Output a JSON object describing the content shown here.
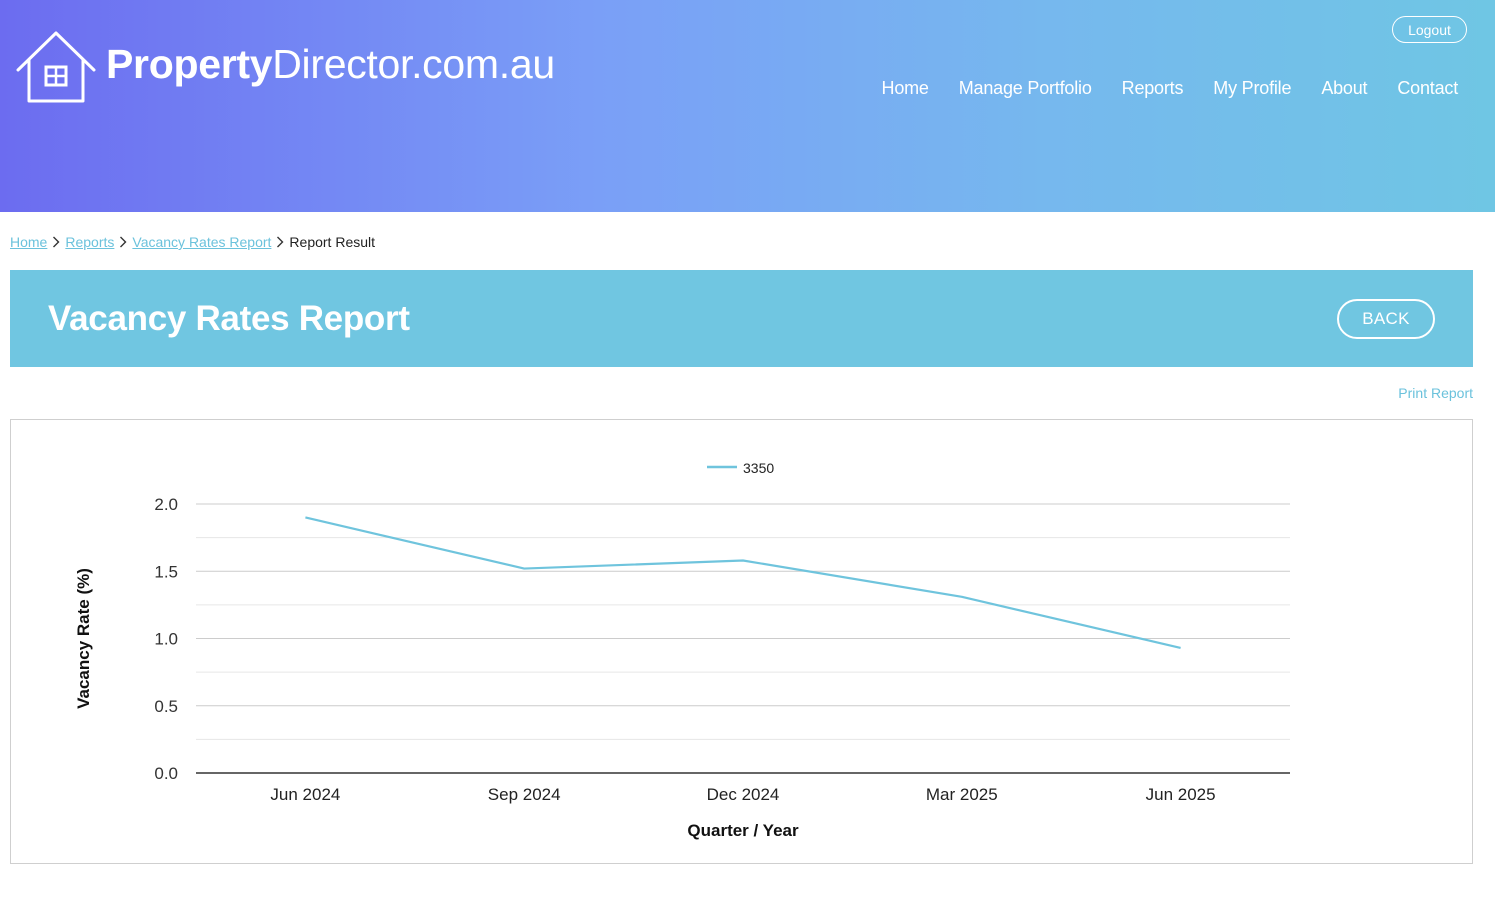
{
  "header": {
    "logo": {
      "bold": "Property",
      "light": "Director.com.au"
    },
    "logout_label": "Logout",
    "nav": [
      "Home",
      "Manage Portfolio",
      "Reports",
      "My Profile",
      "About",
      "Contact"
    ]
  },
  "breadcrumb": {
    "home": "Home",
    "reports": "Reports",
    "vacancy": "Vacancy Rates Report",
    "current": "Report Result"
  },
  "page": {
    "title": "Vacancy Rates Report",
    "back_label": "BACK",
    "print_label": "Print Report"
  },
  "colors": {
    "accent": "#70c6e1",
    "link": "#6bc2dc",
    "series_line": "#6fc4dd"
  },
  "chart_data": {
    "type": "line",
    "categories": [
      "Jun 2024",
      "Sep 2024",
      "Dec 2024",
      "Mar 2025",
      "Jun 2025"
    ],
    "series": [
      {
        "name": "3350",
        "values": [
          1.9,
          1.52,
          1.58,
          1.31,
          0.93
        ]
      }
    ],
    "xlabel": "Quarter / Year",
    "ylabel": "Vacancy Rate (%)",
    "ylim": [
      0,
      2
    ],
    "yticks": [
      "0.0",
      "0.5",
      "1.0",
      "1.5",
      "2.0"
    ],
    "grid": true,
    "legend": "top-center"
  }
}
